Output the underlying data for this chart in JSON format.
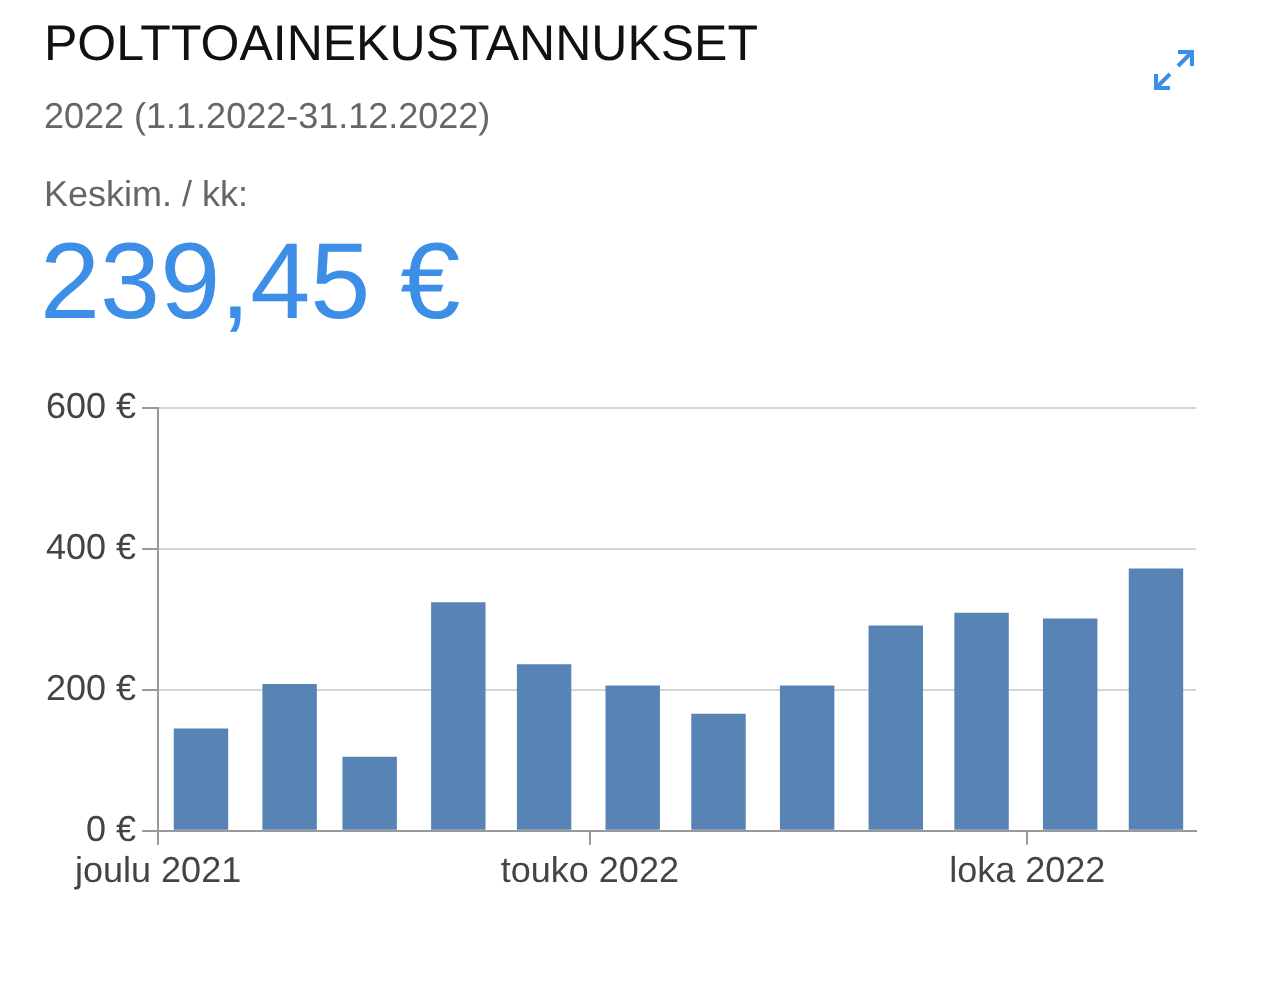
{
  "chart_data": {
    "type": "bar",
    "title": "POLTTOAINEKUSTANNUKSET",
    "subtitle": "2022 (1.1.2022-31.12.2022)",
    "annotations": [
      "Keskim. / kk:",
      "239,45 €"
    ],
    "x": [
      "2022-01-01",
      "2022-02-01",
      "2022-03-01",
      "2022-04-01",
      "2022-05-01",
      "2022-06-01",
      "2022-07-01",
      "2022-08-01",
      "2022-09-01",
      "2022-10-01",
      "2022-11-01",
      "2022-12-01"
    ],
    "values": [
      145,
      208,
      105,
      324,
      236,
      206,
      166,
      206,
      291,
      309,
      301,
      372
    ],
    "color": "#5884b5",
    "xlim": [
      "2021-12-17",
      "2022-12-15"
    ],
    "xticks": [
      {
        "value": "2021-12-17",
        "label": "joulu 2021"
      },
      {
        "value": "2022-05-17",
        "label": "touko 2022"
      },
      {
        "value": "2022-10-17",
        "label": "loka 2022"
      }
    ],
    "ylim": [
      0,
      600
    ],
    "yticks": [
      {
        "value": 0,
        "label": "0 €"
      },
      {
        "value": 200,
        "label": "200 €"
      },
      {
        "value": 400,
        "label": "400 €"
      },
      {
        "value": 600,
        "label": "600 €"
      }
    ],
    "grid": "y",
    "legend": false
  }
}
